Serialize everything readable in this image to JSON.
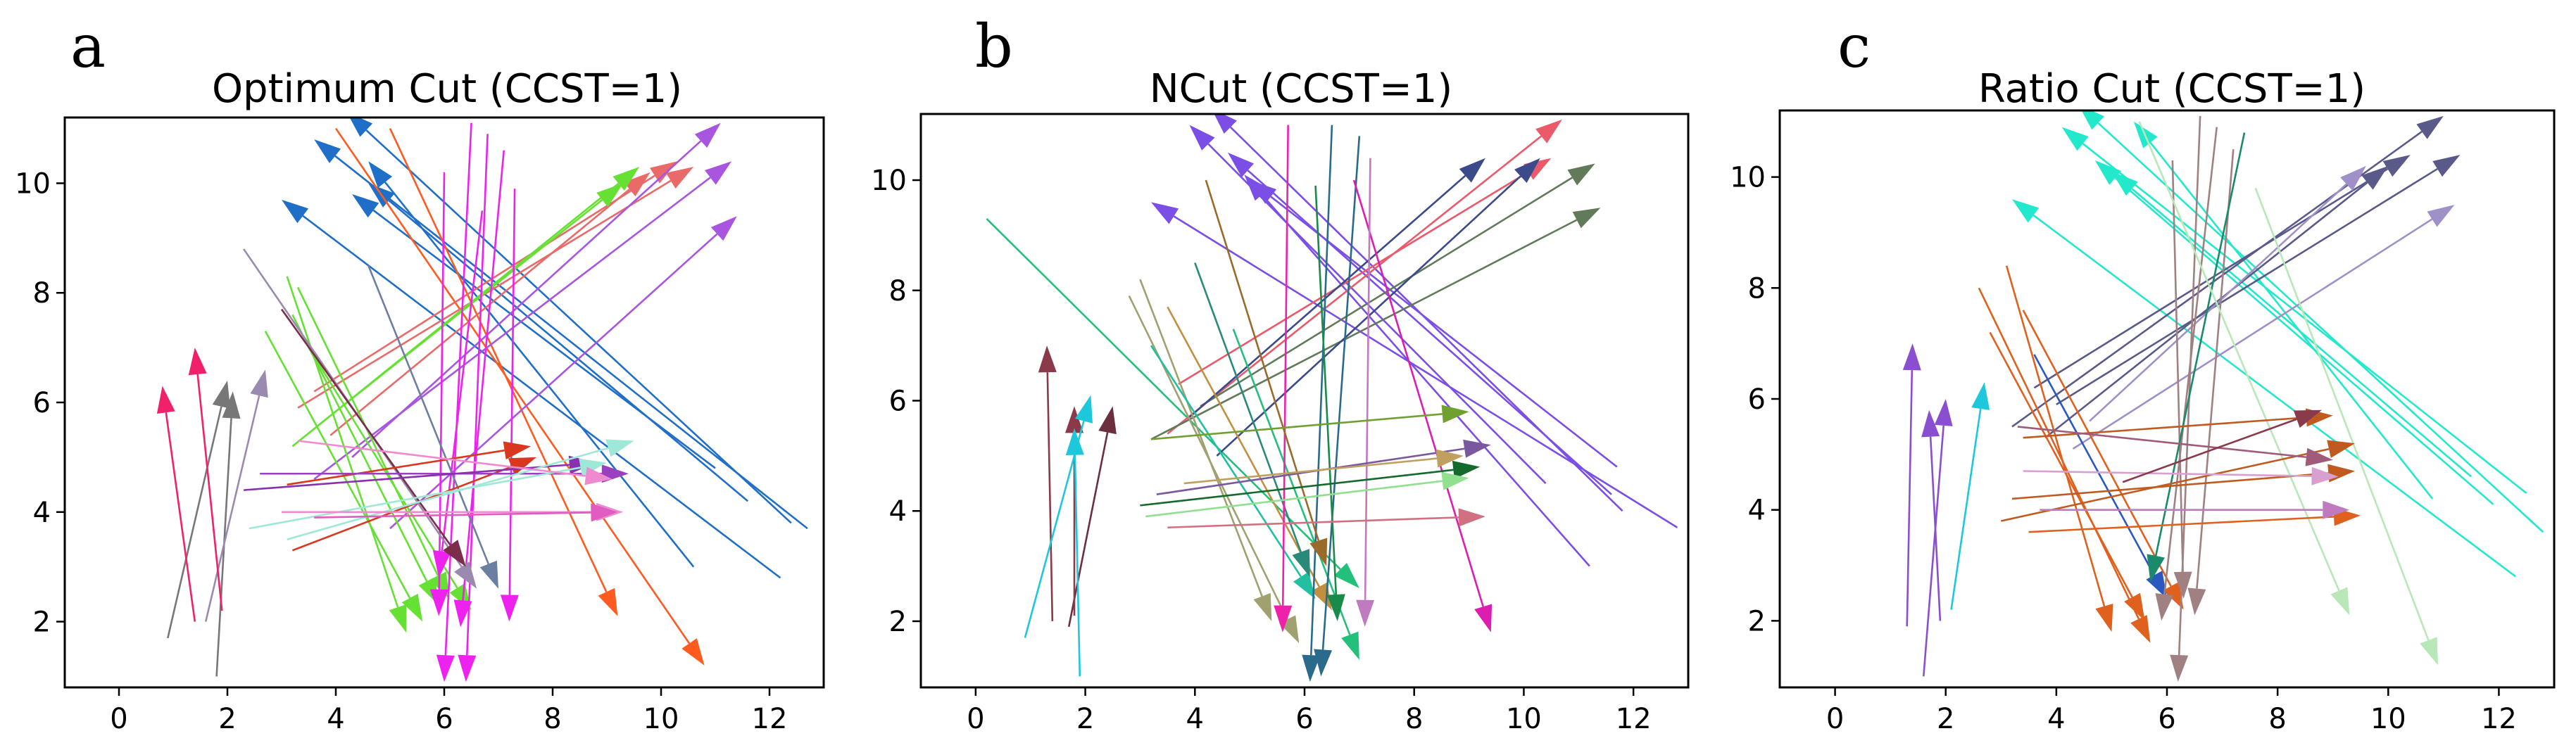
{
  "figure": {
    "description_free": true
  },
  "chart_data": [
    {
      "type": "arrow-plot",
      "panel_letter": "a",
      "title": "Optimum Cut (CCST=1)",
      "xlabel": "",
      "ylabel": "",
      "xlim": [
        -1,
        13
      ],
      "ylim": [
        0.8,
        11.2
      ],
      "xticks": [
        0,
        2,
        4,
        6,
        8,
        10,
        12
      ],
      "yticks": [
        2,
        4,
        6,
        8,
        10
      ],
      "xtick_labels": [
        "0",
        "2",
        "4",
        "6",
        "8",
        "10",
        "12"
      ],
      "ytick_labels": [
        "2",
        "4",
        "6",
        "8",
        "10"
      ],
      "arrows": [
        {
          "x0": 0.9,
          "y0": 1.7,
          "x1": 2.0,
          "y1": 6.4,
          "color": "#777777"
        },
        {
          "x0": 1.8,
          "y0": 1.0,
          "x1": 2.1,
          "y1": 6.2,
          "color": "#777777"
        },
        {
          "x0": 1.6,
          "y0": 2.0,
          "x1": 2.7,
          "y1": 6.6,
          "color": "#9b8ab0"
        },
        {
          "x0": 1.4,
          "y0": 2.0,
          "x1": 0.8,
          "y1": 6.3,
          "color": "#f0206a"
        },
        {
          "x0": 1.9,
          "y0": 2.2,
          "x1": 1.4,
          "y1": 7.0,
          "color": "#f0206a"
        },
        {
          "x0": 12.4,
          "y0": 3.8,
          "x1": 4.2,
          "y1": 11.3,
          "color": "#1f6fc9"
        },
        {
          "x0": 12.2,
          "y0": 2.8,
          "x1": 3.0,
          "y1": 9.7,
          "color": "#1f6fc9"
        },
        {
          "x0": 11.6,
          "y0": 4.2,
          "x1": 4.6,
          "y1": 10.0,
          "color": "#1f6fc9"
        },
        {
          "x0": 12.7,
          "y0": 3.7,
          "x1": 3.6,
          "y1": 10.8,
          "color": "#1f6fc9"
        },
        {
          "x0": 11.0,
          "y0": 4.8,
          "x1": 4.3,
          "y1": 9.8,
          "color": "#1f6fc9"
        },
        {
          "x0": 10.6,
          "y0": 3.0,
          "x1": 4.6,
          "y1": 10.4,
          "color": "#1f6fc9"
        },
        {
          "x0": 4.0,
          "y0": 11.0,
          "x1": 10.8,
          "y1": 1.2,
          "color": "#ff5a1f"
        },
        {
          "x0": 5.0,
          "y0": 11.0,
          "x1": 9.2,
          "y1": 2.1,
          "color": "#ff5a1f"
        },
        {
          "x0": 3.6,
          "y0": 6.2,
          "x1": 10.3,
          "y1": 10.4,
          "color": "#ea6a6a"
        },
        {
          "x0": 3.9,
          "y0": 5.4,
          "x1": 9.8,
          "y1": 10.2,
          "color": "#ea6a6a"
        },
        {
          "x0": 3.3,
          "y0": 5.9,
          "x1": 10.6,
          "y1": 10.3,
          "color": "#ea6a6a"
        },
        {
          "x0": 3.7,
          "y0": 5.6,
          "x1": 9.3,
          "y1": 10.0,
          "color": "#66e033"
        },
        {
          "x0": 3.2,
          "y0": 5.2,
          "x1": 9.6,
          "y1": 10.3,
          "color": "#66e033"
        },
        {
          "x0": 4.3,
          "y0": 5.0,
          "x1": 11.1,
          "y1": 11.1,
          "color": "#a855e0"
        },
        {
          "x0": 3.6,
          "y0": 4.6,
          "x1": 11.3,
          "y1": 10.4,
          "color": "#a855e0"
        },
        {
          "x0": 5.0,
          "y0": 3.7,
          "x1": 11.4,
          "y1": 9.4,
          "color": "#a855e0"
        },
        {
          "x0": 3.1,
          "y0": 8.3,
          "x1": 5.3,
          "y1": 1.8,
          "color": "#66e033"
        },
        {
          "x0": 3.2,
          "y0": 7.6,
          "x1": 5.9,
          "y1": 2.3,
          "color": "#66e033"
        },
        {
          "x0": 2.7,
          "y0": 7.3,
          "x1": 5.6,
          "y1": 2.0,
          "color": "#66e033"
        },
        {
          "x0": 3.3,
          "y0": 8.1,
          "x1": 6.1,
          "y1": 2.4,
          "color": "#66e033"
        },
        {
          "x0": 3.5,
          "y0": 7.0,
          "x1": 6.5,
          "y1": 2.2,
          "color": "#66e033"
        },
        {
          "x0": 6.5,
          "y0": 11.1,
          "x1": 6.0,
          "y1": 0.9,
          "color": "#ee22ee"
        },
        {
          "x0": 6.8,
          "y0": 10.9,
          "x1": 6.4,
          "y1": 0.9,
          "color": "#ee22ee"
        },
        {
          "x0": 7.1,
          "y0": 10.6,
          "x1": 6.3,
          "y1": 1.9,
          "color": "#ee22ee"
        },
        {
          "x0": 6.0,
          "y0": 10.2,
          "x1": 5.9,
          "y1": 2.1,
          "color": "#ee22ee"
        },
        {
          "x0": 7.3,
          "y0": 9.9,
          "x1": 7.2,
          "y1": 2.0,
          "color": "#ee22ee"
        },
        {
          "x0": 6.7,
          "y0": 9.5,
          "x1": 5.9,
          "y1": 2.8,
          "color": "#ee22ee"
        },
        {
          "x0": 2.3,
          "y0": 8.8,
          "x1": 6.6,
          "y1": 2.6,
          "color": "#9b8ab0"
        },
        {
          "x0": 3.0,
          "y0": 7.7,
          "x1": 6.4,
          "y1": 3.0,
          "color": "#7a2e4a"
        },
        {
          "x0": 4.6,
          "y0": 8.5,
          "x1": 7.0,
          "y1": 2.6,
          "color": "#6b7fa3"
        },
        {
          "x0": 3.1,
          "y0": 4.5,
          "x1": 7.6,
          "y1": 5.2,
          "color": "#d9381e"
        },
        {
          "x0": 3.2,
          "y0": 3.3,
          "x1": 7.7,
          "y1": 5.0,
          "color": "#d9381e"
        },
        {
          "x0": 2.6,
          "y0": 4.7,
          "x1": 9.4,
          "y1": 4.7,
          "color": "#9a3fbf"
        },
        {
          "x0": 2.3,
          "y0": 4.4,
          "x1": 8.8,
          "y1": 4.9,
          "color": "#8a2fb0"
        },
        {
          "x0": 2.4,
          "y0": 3.7,
          "x1": 9.0,
          "y1": 4.9,
          "color": "#9fe8d8"
        },
        {
          "x0": 3.1,
          "y0": 3.5,
          "x1": 9.5,
          "y1": 5.3,
          "color": "#9fe8d8"
        },
        {
          "x0": 3.0,
          "y0": 4.0,
          "x1": 9.3,
          "y1": 4.0,
          "color": "#f08ad0"
        },
        {
          "x0": 3.6,
          "y0": 3.9,
          "x1": 9.2,
          "y1": 4.0,
          "color": "#e05cc0"
        },
        {
          "x0": 3.3,
          "y0": 5.3,
          "x1": 9.1,
          "y1": 4.6,
          "color": "#f08ad0"
        }
      ]
    },
    {
      "type": "arrow-plot",
      "panel_letter": "b",
      "title": "NCut (CCST=1)",
      "xlabel": "",
      "ylabel": "",
      "xlim": [
        -1,
        13
      ],
      "ylim": [
        0.8,
        11.2
      ],
      "xticks": [
        0,
        2,
        4,
        6,
        8,
        10,
        12
      ],
      "yticks": [
        2,
        4,
        6,
        8,
        10
      ],
      "xtick_labels": [
        "0",
        "2",
        "4",
        "6",
        "8",
        "10",
        "12"
      ],
      "ytick_labels": [
        "2",
        "4",
        "6",
        "8",
        "10"
      ],
      "arrows": [
        {
          "x0": 1.4,
          "y0": 2.0,
          "x1": 1.3,
          "y1": 7.0,
          "color": "#8b3a4a"
        },
        {
          "x0": 1.7,
          "y0": 1.9,
          "x1": 2.5,
          "y1": 5.9,
          "color": "#6b2f3f"
        },
        {
          "x0": 1.8,
          "y0": 2.1,
          "x1": 1.8,
          "y1": 5.9,
          "color": "#8b3a4a"
        },
        {
          "x0": 0.9,
          "y0": 1.7,
          "x1": 2.1,
          "y1": 6.1,
          "color": "#1ec8dc"
        },
        {
          "x0": 1.9,
          "y0": 1.0,
          "x1": 1.8,
          "y1": 5.5,
          "color": "#1ec8dc"
        },
        {
          "x0": 0.2,
          "y0": 9.3,
          "x1": 7.0,
          "y1": 2.6,
          "color": "#22c07a"
        },
        {
          "x0": 11.8,
          "y0": 4.0,
          "x1": 4.3,
          "y1": 11.3,
          "color": "#7b4ee6"
        },
        {
          "x0": 12.8,
          "y0": 3.7,
          "x1": 3.2,
          "y1": 9.6,
          "color": "#7b4ee6"
        },
        {
          "x0": 11.6,
          "y0": 4.3,
          "x1": 4.6,
          "y1": 10.5,
          "color": "#7b4ee6"
        },
        {
          "x0": 11.2,
          "y0": 3.0,
          "x1": 4.9,
          "y1": 10.1,
          "color": "#7b4ee6"
        },
        {
          "x0": 10.4,
          "y0": 4.5,
          "x1": 3.9,
          "y1": 11.0,
          "color": "#7b4ee6"
        },
        {
          "x0": 11.7,
          "y0": 4.8,
          "x1": 5.0,
          "y1": 10.0,
          "color": "#7b4ee6"
        },
        {
          "x0": 3.7,
          "y0": 6.3,
          "x1": 10.5,
          "y1": 10.4,
          "color": "#ea5a6a"
        },
        {
          "x0": 3.5,
          "y0": 5.4,
          "x1": 10.7,
          "y1": 11.1,
          "color": "#ea5a6a"
        },
        {
          "x0": 4.1,
          "y0": 5.9,
          "x1": 11.3,
          "y1": 10.3,
          "color": "#607a5a"
        },
        {
          "x0": 3.2,
          "y0": 5.3,
          "x1": 11.4,
          "y1": 9.5,
          "color": "#607a5a"
        },
        {
          "x0": 4.4,
          "y0": 5.0,
          "x1": 10.3,
          "y1": 10.4,
          "color": "#3a4a8a"
        },
        {
          "x0": 3.9,
          "y0": 5.7,
          "x1": 9.3,
          "y1": 10.4,
          "color": "#3a4a8a"
        },
        {
          "x0": 3.0,
          "y0": 8.2,
          "x1": 5.4,
          "y1": 2.0,
          "color": "#a0a070"
        },
        {
          "x0": 2.8,
          "y0": 7.9,
          "x1": 5.9,
          "y1": 1.6,
          "color": "#a0a070"
        },
        {
          "x0": 3.5,
          "y0": 7.7,
          "x1": 6.5,
          "y1": 2.2,
          "color": "#c09040"
        },
        {
          "x0": 3.2,
          "y0": 7.0,
          "x1": 6.2,
          "y1": 2.4,
          "color": "#22c0a0"
        },
        {
          "x0": 4.7,
          "y0": 7.3,
          "x1": 7.0,
          "y1": 1.3,
          "color": "#22c07a"
        },
        {
          "x0": 4.0,
          "y0": 8.5,
          "x1": 6.1,
          "y1": 2.8,
          "color": "#2a8a7a"
        },
        {
          "x0": 6.5,
          "y0": 11.0,
          "x1": 6.1,
          "y1": 0.9,
          "color": "#2a6a8a"
        },
        {
          "x0": 7.0,
          "y0": 10.8,
          "x1": 6.3,
          "y1": 1.0,
          "color": "#2a6a8a"
        },
        {
          "x0": 5.7,
          "y0": 11.0,
          "x1": 5.6,
          "y1": 1.8,
          "color": "#ee22aa"
        },
        {
          "x0": 6.9,
          "y0": 10.0,
          "x1": 9.4,
          "y1": 1.8,
          "color": "#dd1cb0"
        },
        {
          "x0": 7.2,
          "y0": 10.4,
          "x1": 7.1,
          "y1": 1.9,
          "color": "#c07ac0"
        },
        {
          "x0": 6.2,
          "y0": 9.9,
          "x1": 6.6,
          "y1": 2.0,
          "color": "#1a8a4a"
        },
        {
          "x0": 4.2,
          "y0": 10.0,
          "x1": 6.4,
          "y1": 3.0,
          "color": "#9a6a2a"
        },
        {
          "x0": 3.2,
          "y0": 5.3,
          "x1": 9.0,
          "y1": 5.8,
          "color": "#70a030"
        },
        {
          "x0": 3.0,
          "y0": 4.1,
          "x1": 9.2,
          "y1": 4.8,
          "color": "#146a2a"
        },
        {
          "x0": 3.3,
          "y0": 4.3,
          "x1": 9.4,
          "y1": 5.2,
          "color": "#7a58a0"
        },
        {
          "x0": 3.5,
          "y0": 3.7,
          "x1": 9.3,
          "y1": 3.9,
          "color": "#d07080"
        },
        {
          "x0": 3.1,
          "y0": 3.9,
          "x1": 9.0,
          "y1": 4.6,
          "color": "#90e090"
        },
        {
          "x0": 3.8,
          "y0": 4.5,
          "x1": 8.9,
          "y1": 5.0,
          "color": "#c0a060"
        }
      ]
    },
    {
      "type": "arrow-plot",
      "panel_letter": "c",
      "title": "Ratio Cut (CCST=1)",
      "xlabel": "",
      "ylabel": "",
      "xlim": [
        -1,
        13
      ],
      "ylim": [
        0.8,
        11.2
      ],
      "xticks": [
        0,
        2,
        4,
        6,
        8,
        10,
        12
      ],
      "yticks": [
        2,
        4,
        6,
        8,
        10
      ],
      "xtick_labels": [
        "0",
        "2",
        "4",
        "6",
        "8",
        "10",
        "12"
      ],
      "ytick_labels": [
        "2",
        "4",
        "6",
        "8",
        "10"
      ],
      "arrows": [
        {
          "x0": 1.3,
          "y0": 1.9,
          "x1": 1.4,
          "y1": 7.0,
          "color": "#8a4fd0"
        },
        {
          "x0": 1.6,
          "y0": 1.0,
          "x1": 2.0,
          "y1": 6.0,
          "color": "#8a4fd0"
        },
        {
          "x0": 1.9,
          "y0": 2.0,
          "x1": 1.7,
          "y1": 5.8,
          "color": "#8a4fd0"
        },
        {
          "x0": 2.1,
          "y0": 2.2,
          "x1": 2.7,
          "y1": 6.3,
          "color": "#1ec8dc"
        },
        {
          "x0": 12.8,
          "y0": 3.6,
          "x1": 4.4,
          "y1": 11.3,
          "color": "#22e8cc"
        },
        {
          "x0": 12.3,
          "y0": 2.8,
          "x1": 3.2,
          "y1": 9.6,
          "color": "#22e8cc"
        },
        {
          "x0": 11.9,
          "y0": 4.1,
          "x1": 4.7,
          "y1": 10.3,
          "color": "#22e8cc"
        },
        {
          "x0": 11.5,
          "y0": 4.6,
          "x1": 5.0,
          "y1": 10.1,
          "color": "#22e8cc"
        },
        {
          "x0": 12.5,
          "y0": 4.3,
          "x1": 4.1,
          "y1": 10.9,
          "color": "#22e8cc"
        },
        {
          "x0": 10.8,
          "y0": 4.2,
          "x1": 5.4,
          "y1": 11.0,
          "color": "#22e8cc"
        },
        {
          "x0": 3.6,
          "y0": 6.2,
          "x1": 10.4,
          "y1": 10.4,
          "color": "#5a5a8a"
        },
        {
          "x0": 3.2,
          "y0": 5.5,
          "x1": 11.0,
          "y1": 11.1,
          "color": "#5a5a8a"
        },
        {
          "x0": 4.0,
          "y0": 5.9,
          "x1": 11.3,
          "y1": 10.4,
          "color": "#5a5a8a"
        },
        {
          "x0": 3.8,
          "y0": 5.3,
          "x1": 10.0,
          "y1": 10.2,
          "color": "#5a5a8a"
        },
        {
          "x0": 4.3,
          "y0": 5.1,
          "x1": 11.2,
          "y1": 9.5,
          "color": "#a090c8"
        },
        {
          "x0": 4.6,
          "y0": 5.6,
          "x1": 9.6,
          "y1": 10.2,
          "color": "#a090c8"
        },
        {
          "x0": 3.1,
          "y0": 8.4,
          "x1": 5.0,
          "y1": 1.8,
          "color": "#e0601e"
        },
        {
          "x0": 2.6,
          "y0": 8.0,
          "x1": 5.7,
          "y1": 1.6,
          "color": "#e0601e"
        },
        {
          "x0": 3.4,
          "y0": 7.6,
          "x1": 6.3,
          "y1": 2.2,
          "color": "#e0601e"
        },
        {
          "x0": 2.8,
          "y0": 7.2,
          "x1": 5.6,
          "y1": 2.0,
          "color": "#e0601e"
        },
        {
          "x0": 3.6,
          "y0": 6.8,
          "x1": 6.0,
          "y1": 2.4,
          "color": "#2a58c0"
        },
        {
          "x0": 6.6,
          "y0": 11.1,
          "x1": 6.2,
          "y1": 0.9,
          "color": "#a08080"
        },
        {
          "x0": 6.9,
          "y0": 10.9,
          "x1": 5.9,
          "y1": 2.0,
          "color": "#a08080"
        },
        {
          "x0": 7.2,
          "y0": 10.5,
          "x1": 6.5,
          "y1": 2.1,
          "color": "#a08080"
        },
        {
          "x0": 6.1,
          "y0": 10.3,
          "x1": 6.3,
          "y1": 2.4,
          "color": "#a08080"
        },
        {
          "x0": 7.4,
          "y0": 10.8,
          "x1": 5.7,
          "y1": 2.7,
          "color": "#1a8a6a"
        },
        {
          "x0": 7.6,
          "y0": 9.8,
          "x1": 10.9,
          "y1": 1.2,
          "color": "#b8e8b8"
        },
        {
          "x0": 5.5,
          "y0": 11.0,
          "x1": 9.3,
          "y1": 2.1,
          "color": "#b8e8b8"
        },
        {
          "x0": 3.4,
          "y0": 5.3,
          "x1": 9.0,
          "y1": 5.7,
          "color": "#c05a1e"
        },
        {
          "x0": 3.0,
          "y0": 3.8,
          "x1": 9.4,
          "y1": 5.2,
          "color": "#c05a1e"
        },
        {
          "x0": 3.5,
          "y0": 3.6,
          "x1": 9.5,
          "y1": 3.9,
          "color": "#e0601e"
        },
        {
          "x0": 3.2,
          "y0": 4.2,
          "x1": 9.4,
          "y1": 4.7,
          "color": "#c05a1e"
        },
        {
          "x0": 3.4,
          "y0": 4.7,
          "x1": 9.1,
          "y1": 4.6,
          "color": "#d8a0d0"
        },
        {
          "x0": 3.7,
          "y0": 4.0,
          "x1": 9.3,
          "y1": 4.0,
          "color": "#c07ac0"
        },
        {
          "x0": 3.3,
          "y0": 5.5,
          "x1": 9.0,
          "y1": 4.9,
          "color": "#a05a7a"
        },
        {
          "x0": 5.2,
          "y0": 4.5,
          "x1": 8.8,
          "y1": 5.8,
          "color": "#8a3a4a"
        }
      ]
    }
  ]
}
